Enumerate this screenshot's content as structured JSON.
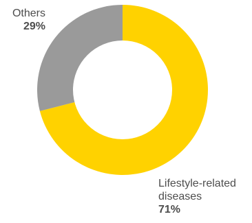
{
  "chart_data": {
    "type": "pie",
    "variant": "donut",
    "title": "",
    "slices": [
      {
        "label": "Lifestyle-related diseases",
        "value": 71,
        "value_text": "71%",
        "color": "#ffd200"
      },
      {
        "label": "Others",
        "value": 29,
        "value_text": "29%",
        "color": "#9a9a9a"
      }
    ],
    "legend": "none",
    "data_labels": "outside"
  }
}
